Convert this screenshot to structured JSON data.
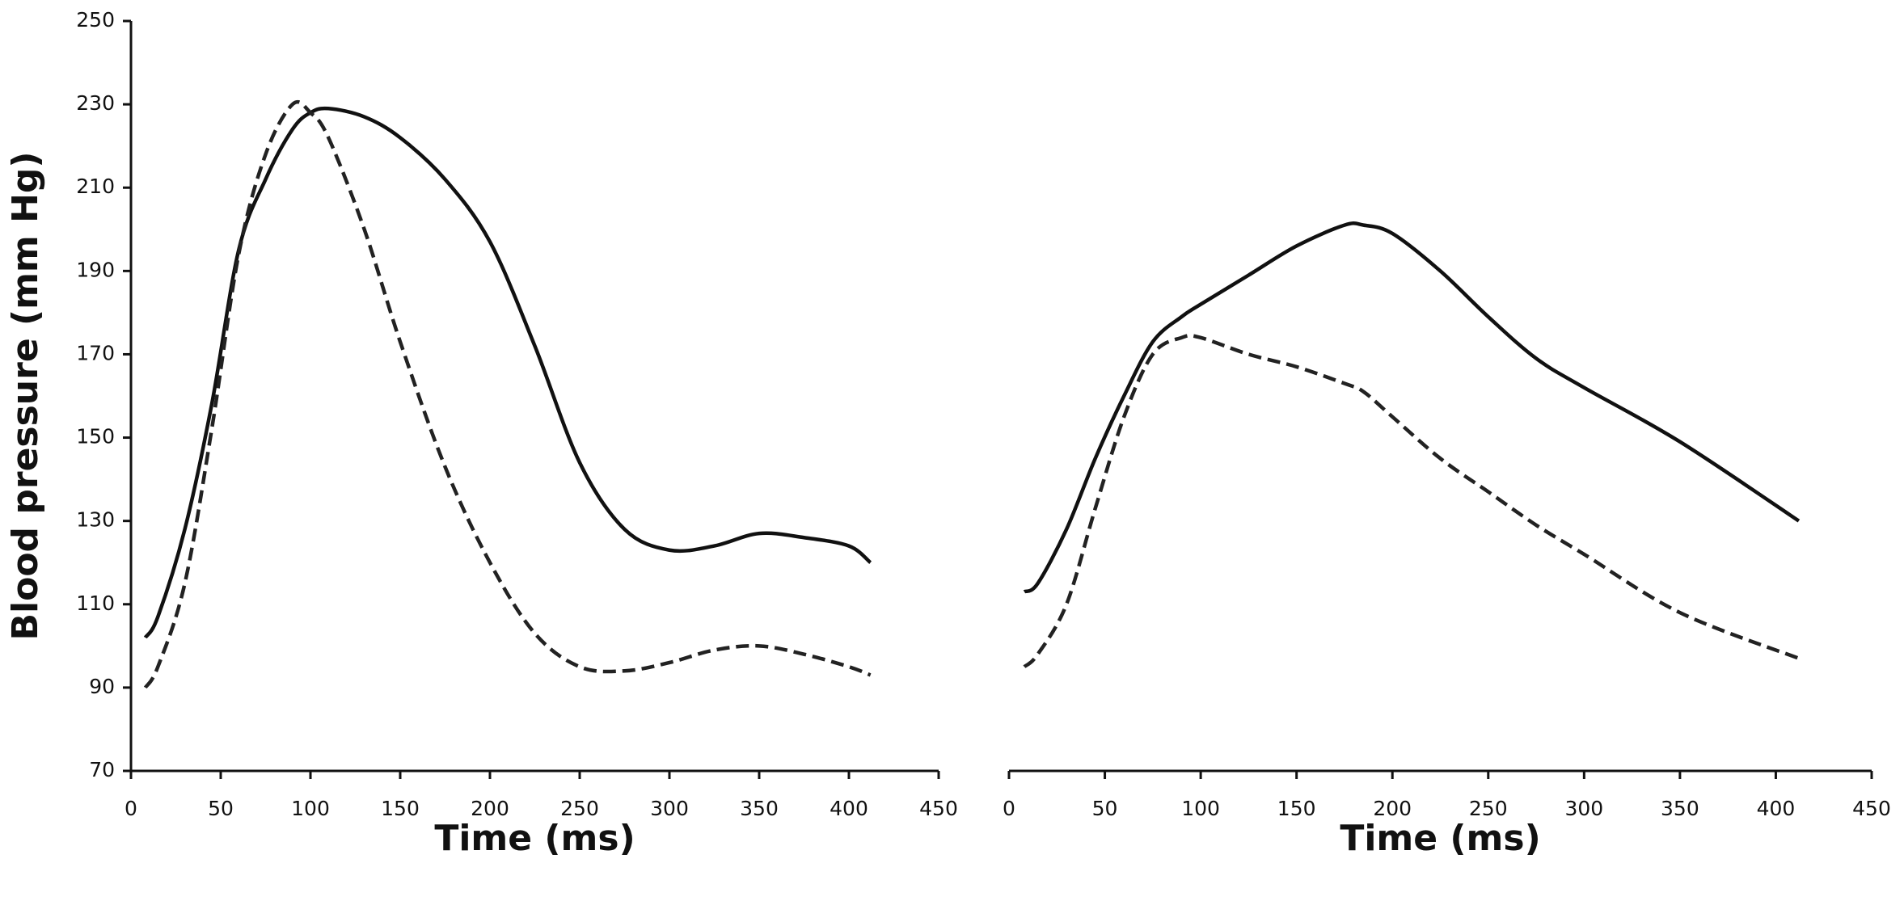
{
  "chart_data": [
    {
      "type": "line",
      "y_label": "Blood pressure (mm Hg)",
      "x_label": "Time (ms)",
      "x": [
        8,
        15,
        30,
        45,
        60,
        75,
        90,
        100,
        110,
        130,
        150,
        175,
        200,
        225,
        250,
        275,
        300,
        325,
        350,
        375,
        400,
        412
      ],
      "series": [
        {
          "color": "#111111",
          "line_style": "solid",
          "values": [
            102,
            107,
            128,
            158,
            195,
            212,
            224,
            228,
            229,
            227,
            222,
            212,
            197,
            172,
            144,
            128,
            123,
            124,
            127,
            126,
            124,
            120
          ]
        },
        {
          "color": "#222222",
          "line_style": "dashed",
          "values": [
            90,
            95,
            115,
            152,
            194,
            218,
            230,
            228,
            222,
            200,
            173,
            143,
            120,
            103,
            95,
            94,
            96,
            99,
            100,
            98,
            95,
            93
          ]
        }
      ],
      "xlim": [
        0,
        450
      ],
      "xticks": [
        0,
        50,
        100,
        150,
        200,
        250,
        300,
        350,
        400,
        450
      ],
      "ylim": [
        70,
        250
      ],
      "yticks": [
        70,
        90,
        110,
        130,
        150,
        170,
        190,
        210,
        230,
        250
      ],
      "y_axis": true
    },
    {
      "type": "line",
      "x_label": "Time (ms)",
      "x": [
        8,
        15,
        30,
        45,
        60,
        75,
        90,
        100,
        125,
        150,
        175,
        185,
        200,
        225,
        250,
        275,
        300,
        350,
        412
      ],
      "series": [
        {
          "color": "#111111",
          "line_style": "solid",
          "values": [
            113,
            115,
            128,
            145,
            160,
            173,
            179,
            182,
            189,
            196,
            201,
            201,
            199,
            190,
            179,
            169,
            162,
            149,
            130
          ]
        },
        {
          "color": "#222222",
          "line_style": "dashed",
          "values": [
            95,
            98,
            110,
            133,
            155,
            170,
            174,
            174,
            170,
            167,
            163,
            161,
            155,
            145,
            137,
            129,
            122,
            108,
            97
          ]
        }
      ],
      "xlim": [
        0,
        450
      ],
      "xticks": [
        0,
        50,
        100,
        150,
        200,
        250,
        300,
        350,
        400,
        450
      ],
      "ylim": [
        70,
        250
      ],
      "y_axis": false
    }
  ]
}
